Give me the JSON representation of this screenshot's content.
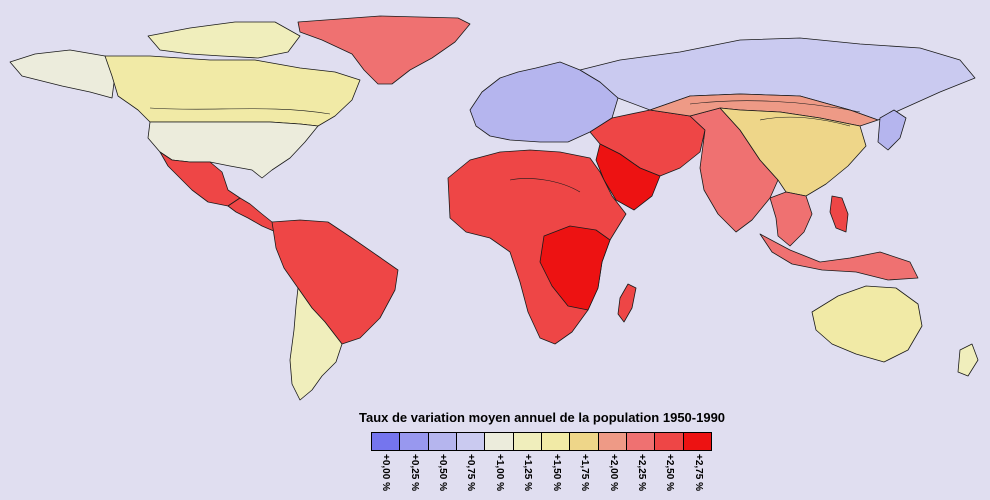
{
  "legend": {
    "title": "Taux de variation moyen annuel de la population 1950-1990",
    "colors": [
      "#7575ee",
      "#9898ef",
      "#b5b5ee",
      "#cacaf0",
      "#ececdc",
      "#f0eebc",
      "#f1eaa6",
      "#eed689",
      "#ee9a86",
      "#ef7171",
      "#ee4646",
      "#ed1212"
    ],
    "labels": [
      "+0,00 %",
      "+0,25 %",
      "+0,50 %",
      "+0,75 %",
      "+1,00 %",
      "+1,25 %",
      "+1,50 %",
      "+1,75 %",
      "+2,00 %",
      "+2,25 %",
      "+2,50 %",
      "+2,75 %"
    ]
  },
  "regions": [
    {
      "name": "Greenland",
      "color": "#ef7171"
    },
    {
      "name": "Arctic Canada",
      "color": "#f0eebc"
    },
    {
      "name": "Alaska",
      "color": "#ececdc"
    },
    {
      "name": "Canada",
      "color": "#f1eaa6"
    },
    {
      "name": "United States",
      "color": "#ececdc"
    },
    {
      "name": "Mexico",
      "color": "#ee4646"
    },
    {
      "name": "Central America",
      "color": "#ee4646"
    },
    {
      "name": "South America",
      "color": "#ee4646"
    },
    {
      "name": "Southern Cone",
      "color": "#f0eebc"
    },
    {
      "name": "Europe",
      "color": "#b5b5ee"
    },
    {
      "name": "Russia",
      "color": "#cacaf0"
    },
    {
      "name": "Middle East",
      "color": "#ee4646"
    },
    {
      "name": "Arabian Peninsula",
      "color": "#ed1212"
    },
    {
      "name": "Africa",
      "color": "#ee4646"
    },
    {
      "name": "East Africa",
      "color": "#ed1212"
    },
    {
      "name": "Madagascar",
      "color": "#ee4646"
    },
    {
      "name": "South Asia",
      "color": "#ef7171"
    },
    {
      "name": "Central Asia",
      "color": "#ee9a86"
    },
    {
      "name": "China",
      "color": "#eed689"
    },
    {
      "name": "Southeast Asia",
      "color": "#ef7171"
    },
    {
      "name": "Philippines",
      "color": "#ee4646"
    },
    {
      "name": "Indonesia",
      "color": "#ef7171"
    },
    {
      "name": "Japan",
      "color": "#b5b5ee"
    },
    {
      "name": "Australia",
      "color": "#f1eaa6"
    },
    {
      "name": "New Zealand",
      "color": "#f0eebc"
    }
  ]
}
